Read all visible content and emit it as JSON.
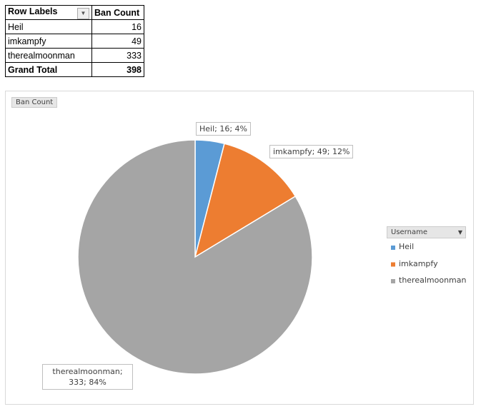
{
  "table": {
    "header": [
      "Row Labels",
      "Ban Count"
    ],
    "rows": [
      [
        "Heil",
        "16"
      ],
      [
        "imkampfy",
        "49"
      ],
      [
        "therealmoonman",
        "333"
      ]
    ],
    "total": [
      "Grand Total",
      "398"
    ]
  },
  "chart_data": {
    "type": "pie",
    "field_button": "Ban Count",
    "legend_title": "Username",
    "categories": [
      "Heil",
      "imkampfy",
      "therealmoonman"
    ],
    "values": [
      16,
      49,
      333
    ],
    "value_labels": [
      "Heil; 16; 4%",
      "imkampfy; 49; 12%",
      "therealmoonman; 333; 84%"
    ],
    "colors": [
      "#5b9bd5",
      "#ed7d31",
      "#a5a5a5"
    ]
  }
}
